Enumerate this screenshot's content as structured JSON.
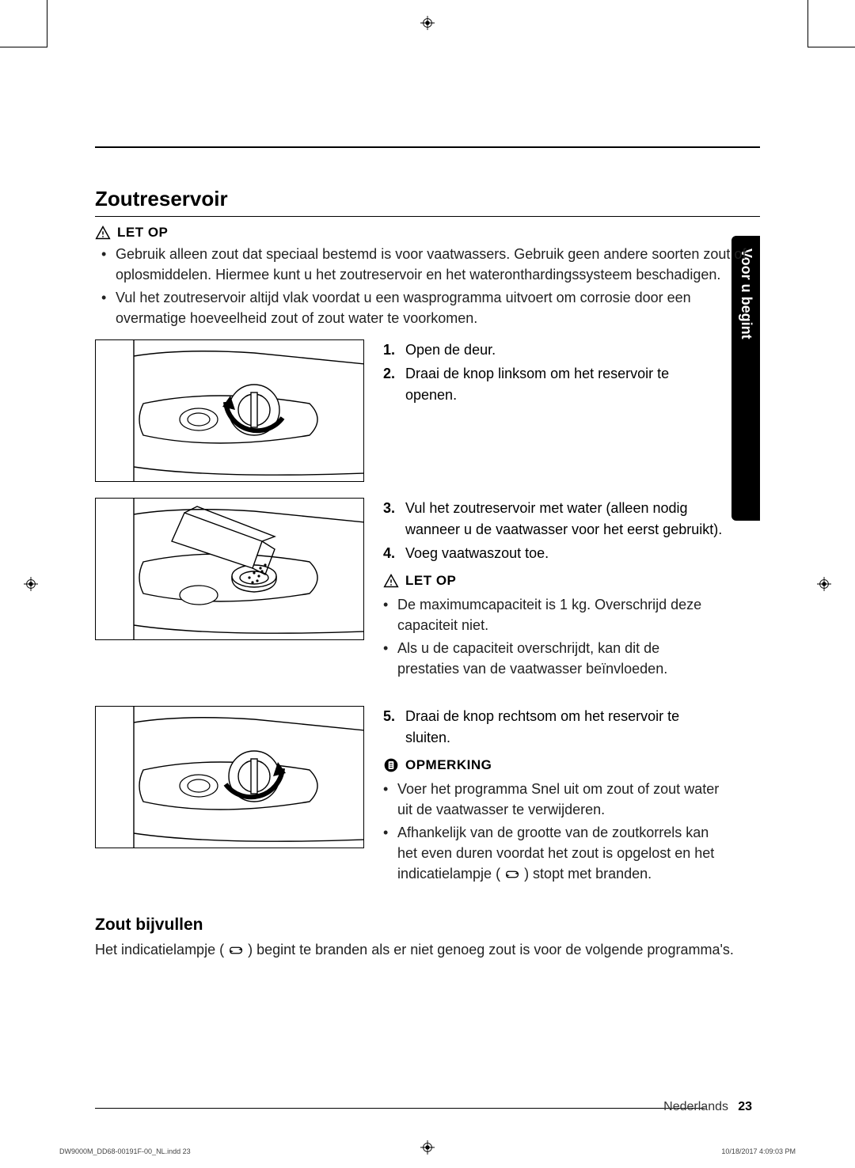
{
  "section_title": "Zoutreservoir",
  "sidebar_label": "Voor u begint",
  "warnings": {
    "top": {
      "label": "LET OP",
      "bullets": [
        "Gebruik alleen zout dat speciaal bestemd is voor vaatwassers. Gebruik geen andere soorten zout of oplosmiddelen. Hiermee kunt u het zoutreservoir en het wateronthardingssysteem beschadigen.",
        "Vul het zoutreservoir altijd vlak voordat u een wasprogramma uitvoert om corrosie door een overmatige hoeveelheid zout of zout water te voorkomen."
      ]
    },
    "mid": {
      "label": "LET OP",
      "bullets": [
        "De maximumcapaciteit is 1 kg. Overschrijd deze capaciteit niet.",
        "Als u de capaciteit overschrijdt, kan dit de prestaties van de vaatwasser beïnvloeden."
      ]
    }
  },
  "steps_block1": {
    "s1": "Open de deur.",
    "s2": "Draai de knop linksom om het reservoir te openen."
  },
  "steps_block2": {
    "s3": "Vul het zoutreservoir met water (alleen nodig wanneer u de vaatwasser voor het eerst gebruikt).",
    "s4": "Voeg vaatwaszout toe."
  },
  "steps_block3": {
    "s5": "Draai de knop rechtsom om het reservoir te sluiten."
  },
  "note": {
    "label": "OPMERKING",
    "bullets": [
      "Voer het programma Snel uit om zout of zout water uit de vaatwasser te verwijderen.",
      "Afhankelijk van de grootte van de zoutkorrels kan het even duren voordat het zout is opgelost en het indicatielampje (      ) stopt met branden."
    ]
  },
  "refill": {
    "heading": "Zout bijvullen",
    "text_before": "Het indicatielampje ( ",
    "text_after": " ) begint te branden als er niet genoeg zout is voor de volgende programma's."
  },
  "footer": {
    "lang": "Nederlands",
    "page": "23",
    "indd_left": "DW9000M_DD68-00191F-00_NL.indd   23",
    "indd_right": "10/18/2017   4:09:03 PM"
  },
  "icons": {
    "warning": "warning-triangle",
    "note": "note-sheet",
    "salt": "salt-arrows"
  },
  "colors": {
    "text": "#222222",
    "rule": "#000000",
    "tab_bg": "#000000",
    "tab_text": "#ffffff"
  }
}
